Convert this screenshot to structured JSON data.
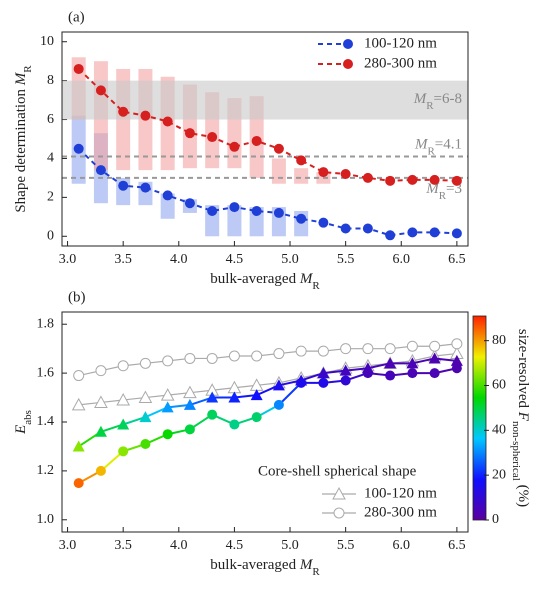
{
  "chart_data": [
    {
      "type": "line",
      "panel_label": "(a)",
      "x_label": [
        {
          "text": "bulk-averaged "
        },
        {
          "text": "M",
          "style": "italic"
        },
        {
          "text": "R",
          "style": "sub"
        }
      ],
      "y_label": [
        {
          "text": "Shape determination "
        },
        {
          "text": "M",
          "style": "italic"
        },
        {
          "text": "R",
          "style": "sub"
        }
      ],
      "x": [
        3.1,
        3.3,
        3.5,
        3.7,
        3.9,
        4.1,
        4.3,
        4.5,
        4.7,
        4.9,
        5.1,
        5.3,
        5.5,
        5.7,
        5.9,
        6.1,
        6.3,
        6.5
      ],
      "xlim": [
        2.95,
        6.6
      ],
      "xticks": [
        {
          "value": 3,
          "label": "3.0"
        },
        3.5,
        {
          "value": 4,
          "label": "4.0"
        },
        4.5,
        {
          "value": 5,
          "label": "5.0"
        },
        5.5,
        {
          "value": 6,
          "label": "6.0"
        },
        6.5
      ],
      "ylim": [
        -0.5,
        10.5
      ],
      "yticks": [
        0,
        2,
        4,
        6,
        8,
        10
      ],
      "legend": "upper right",
      "series": [
        {
          "name": "100-120 nm",
          "color": "#1f3fd6",
          "range_color": "#8fa6ee",
          "values": [
            4.5,
            3.4,
            2.6,
            2.5,
            2.1,
            1.7,
            1.3,
            1.5,
            1.3,
            1.2,
            0.9,
            0.7,
            0.4,
            0.4,
            0.05,
            0.2,
            0.2,
            0.15
          ],
          "ranges": [
            [
              2.7,
              6.2
            ],
            [
              1.7,
              5.3
            ],
            [
              1.6,
              3.0
            ],
            [
              1.6,
              2.8
            ],
            [
              0.9,
              2.2
            ],
            [
              1.2,
              1.9
            ],
            [
              0,
              1.6
            ],
            [
              0,
              1.6
            ],
            [
              0,
              1.5
            ],
            [
              0,
              1.5
            ],
            [
              0,
              1.3
            ],
            null,
            null,
            null,
            null,
            null,
            null,
            null
          ]
        },
        {
          "name": "280-300 nm",
          "color": "#d6201f",
          "range_color": "#f4a3a3",
          "values": [
            8.6,
            7.5,
            6.4,
            6.2,
            5.9,
            5.3,
            5.1,
            4.6,
            4.9,
            4.5,
            3.9,
            3.3,
            3.2,
            3.0,
            2.85,
            2.9,
            2.9,
            2.85
          ],
          "ranges": [
            [
              6.0,
              9.2
            ],
            [
              3.4,
              9.0
            ],
            [
              3.4,
              8.6
            ],
            [
              3.4,
              8.6
            ],
            [
              3.4,
              8.2
            ],
            [
              3.5,
              7.8
            ],
            [
              3.5,
              7.4
            ],
            [
              3.5,
              7.1
            ],
            [
              3.0,
              7.2
            ],
            [
              2.7,
              4.0
            ],
            [
              2.7,
              3.5
            ],
            [
              2.7,
              3.3
            ],
            null,
            null,
            null,
            null,
            null,
            null
          ]
        }
      ],
      "band": [
        6,
        8
      ],
      "hlines": [
        4.1,
        3
      ],
      "annotations": [
        [
          {
            "text": "M",
            "style": "italic"
          },
          {
            "text": "R",
            "style": "sub"
          },
          {
            "text": "=6-8"
          }
        ],
        [
          {
            "text": "M",
            "style": "italic"
          },
          {
            "text": "R",
            "style": "sub"
          },
          {
            "text": "=4.1"
          }
        ],
        [
          {
            "text": "M",
            "style": "italic"
          },
          {
            "text": "R",
            "style": "sub"
          },
          {
            "text": "=3"
          }
        ]
      ]
    },
    {
      "type": "scatter",
      "panel_label": "(b)",
      "x_label": [
        {
          "text": "bulk-averaged "
        },
        {
          "text": "M",
          "style": "italic"
        },
        {
          "text": "R",
          "style": "sub"
        }
      ],
      "y_label": [
        {
          "text": "E",
          "style": "italic"
        },
        {
          "text": "abs",
          "style": "sub"
        }
      ],
      "x": [
        3.1,
        3.3,
        3.5,
        3.7,
        3.9,
        4.1,
        4.3,
        4.5,
        4.7,
        4.9,
        5.1,
        5.3,
        5.5,
        5.7,
        5.9,
        6.1,
        6.3,
        6.5
      ],
      "xlim": [
        2.95,
        6.6
      ],
      "xticks": [
        {
          "value": 3,
          "label": "3.0"
        },
        3.5,
        {
          "value": 4,
          "label": "4.0"
        },
        4.5,
        {
          "value": 5,
          "label": "5.0"
        },
        5.5,
        {
          "value": 6,
          "label": "6.0"
        },
        6.5
      ],
      "ylim": [
        0.95,
        1.85
      ],
      "yticks": [
        {
          "value": 1,
          "label": "1.0"
        },
        1.2,
        1.4,
        1.6,
        1.8
      ],
      "legend": "lower right",
      "legend_title": "Core-shell spherical shape",
      "series": [
        {
          "name": "100-120 nm",
          "marker": "triangle",
          "color": "#aaaaaa",
          "reference": [
            1.47,
            1.48,
            1.49,
            1.5,
            1.51,
            1.52,
            1.53,
            1.54,
            1.55,
            1.56,
            1.58,
            1.6,
            1.62,
            1.63,
            1.64,
            1.65,
            1.67,
            1.68
          ],
          "values": [
            1.3,
            1.36,
            1.39,
            1.42,
            1.46,
            1.47,
            1.5,
            1.5,
            1.51,
            1.55,
            1.57,
            1.6,
            1.61,
            1.62,
            1.64,
            1.64,
            1.66,
            1.65
          ],
          "color_values": [
            65,
            50,
            48,
            40,
            32,
            30,
            22,
            20,
            18,
            15,
            12,
            8,
            6,
            5,
            4,
            4,
            3,
            3
          ]
        },
        {
          "name": "280-300 nm",
          "marker": "circle",
          "color": "#aaaaaa",
          "reference": [
            1.59,
            1.61,
            1.63,
            1.64,
            1.65,
            1.66,
            1.66,
            1.67,
            1.67,
            1.68,
            1.69,
            1.69,
            1.7,
            1.7,
            1.7,
            1.71,
            1.71,
            1.72
          ],
          "values": [
            1.15,
            1.2,
            1.28,
            1.31,
            1.35,
            1.37,
            1.43,
            1.39,
            1.42,
            1.47,
            1.56,
            1.56,
            1.57,
            1.6,
            1.59,
            1.6,
            1.6,
            1.62
          ],
          "color_values": [
            85,
            78,
            65,
            60,
            55,
            50,
            48,
            45,
            47,
            30,
            15,
            14,
            10,
            5,
            5,
            4,
            4,
            3
          ]
        }
      ],
      "colorbar": {
        "clim": [
          0,
          91
        ],
        "ticks": [
          0,
          20,
          40,
          60,
          80
        ],
        "colormap": [
          "#5a00a0",
          "#1010ff",
          "#00c8ff",
          "#00d800",
          "#f0f000",
          "#ff2000"
        ],
        "label": [
          {
            "text": "size-resolved "
          },
          {
            "text": "F",
            "style": "italic"
          },
          {
            "text": "non-spherical",
            "style": "sub"
          },
          {
            "text": " (%)"
          }
        ]
      }
    }
  ]
}
